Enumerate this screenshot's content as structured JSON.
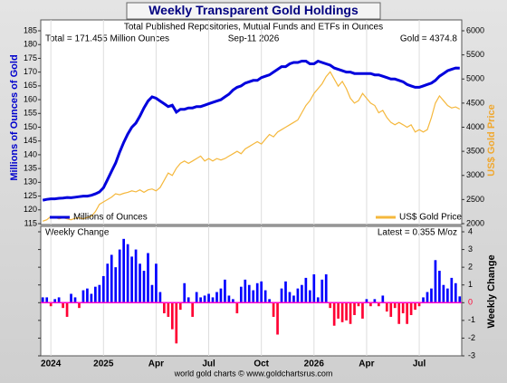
{
  "chart_data": [
    {
      "type": "line",
      "title": "Weekly Transparent Gold Holdings",
      "subtitle": "Total Published Repositories, Mutual Funds and ETFs in Ounces",
      "total_label": "Total = 171.455 Million Ounces",
      "date": "Sep-11 2026",
      "gold_label": "Gold = 4374.8",
      "ylabel": "Millions of Ounces of Gold",
      "y2label": "US$ Gold Price",
      "ylim": [
        115,
        185
      ],
      "yticks": [
        115,
        120,
        125,
        130,
        135,
        140,
        145,
        150,
        155,
        160,
        165,
        170,
        175,
        180,
        185
      ],
      "y2lim": [
        2000,
        6000
      ],
      "y2ticks": [
        2000,
        2500,
        3000,
        3500,
        4000,
        4500,
        5000,
        5500,
        6000
      ],
      "series": [
        {
          "name": "Millions of Ounces",
          "color": "#0000dd",
          "axis": "y",
          "values": [
            123.5,
            123.8,
            124,
            124,
            124.2,
            124.3,
            124.5,
            124.4,
            124.6,
            124.8,
            125,
            125,
            125.3,
            125.8,
            126.5,
            128,
            131,
            134,
            137,
            141,
            144.5,
            147.5,
            150,
            151.5,
            154,
            157,
            159.5,
            161,
            160.5,
            159.5,
            158.5,
            157.5,
            158,
            155.5,
            156.5,
            156.5,
            157,
            157,
            157.5,
            157.5,
            158,
            158.5,
            159,
            159.5,
            160,
            161,
            162,
            163.5,
            164.5,
            165,
            166,
            166.5,
            167,
            167,
            168,
            168.5,
            169,
            170,
            171,
            172,
            172,
            173,
            173.5,
            173.5,
            174,
            174,
            173,
            173,
            174,
            173.5,
            173,
            172.5,
            171.5,
            171,
            170.5,
            170,
            170,
            169.5,
            169.5,
            169.5,
            169.5,
            169.5,
            169,
            169,
            168.5,
            168,
            167.5,
            167.5,
            167,
            166.5,
            165.5,
            165,
            164.5,
            164.5,
            165,
            165.5,
            166,
            167,
            168.5,
            169.5,
            170.5,
            171,
            171.5,
            171.455
          ]
        },
        {
          "name": "US$ Gold Price",
          "color": "#f5b83d",
          "axis": "y2",
          "values": [
            2050,
            2080,
            2150,
            2130,
            2100,
            2120,
            2100,
            2080,
            2110,
            2120,
            2100,
            2130,
            2150,
            2250,
            2400,
            2450,
            2500,
            2550,
            2620,
            2600,
            2630,
            2650,
            2680,
            2660,
            2700,
            2650,
            2700,
            2720,
            2680,
            2750,
            2900,
            3050,
            3000,
            3150,
            3250,
            3300,
            3250,
            3300,
            3350,
            3400,
            3300,
            3350,
            3300,
            3350,
            3320,
            3350,
            3400,
            3450,
            3500,
            3450,
            3550,
            3600,
            3650,
            3700,
            3650,
            3750,
            3850,
            3800,
            3900,
            3950,
            4000,
            4050,
            4100,
            4150,
            4300,
            4450,
            4550,
            4700,
            4800,
            4900,
            5050,
            5150,
            5000,
            4850,
            4950,
            4800,
            4600,
            4500,
            4550,
            4700,
            4600,
            4500,
            4450,
            4300,
            4350,
            4200,
            4100,
            4050,
            4100,
            4050,
            4000,
            4050,
            3900,
            3950,
            3900,
            3950,
            4200,
            4500,
            4650,
            4550,
            4450,
            4400,
            4420,
            4374.8
          ]
        }
      ]
    },
    {
      "type": "bar",
      "title": "Weekly Change",
      "annotation": "Latest = 0.355 M/oz",
      "ylabel": "Weekly Change",
      "footer": "world gold charts © www.goldchartsrus.com",
      "color": "#0000ff",
      "negative_color": "#ff0033",
      "zero_line_color": "#ff00cc",
      "ylim": [
        -3,
        4
      ],
      "yticks": [
        -3,
        -2,
        -1,
        0,
        1,
        2,
        3,
        4
      ],
      "categories": [
        null,
        null,
        "2024",
        null,
        null,
        null,
        null,
        null,
        null,
        null,
        null,
        null,
        null,
        null,
        null,
        "2025",
        null,
        null,
        null,
        null,
        null,
        null,
        null,
        null,
        null,
        null,
        null,
        null,
        "Apr",
        null,
        null,
        null,
        null,
        null,
        null,
        null,
        null,
        null,
        null,
        null,
        null,
        "Jul",
        null,
        null,
        null,
        null,
        null,
        null,
        null,
        null,
        null,
        null,
        null,
        null,
        "Oct",
        null,
        null,
        null,
        null,
        null,
        null,
        null,
        null,
        null,
        null,
        null,
        null,
        "2026",
        null,
        null,
        null,
        null,
        null,
        null,
        null,
        null,
        null,
        null,
        null,
        null,
        "Apr",
        null,
        null,
        null,
        null,
        null,
        null,
        null,
        null,
        null,
        null,
        null,
        null,
        "Jul",
        null,
        null,
        null,
        null,
        null,
        null,
        null,
        null,
        null,
        null
      ],
      "values": [
        0.3,
        0.3,
        -0.2,
        0.2,
        0.3,
        -0.3,
        -0.8,
        0.5,
        0.3,
        -0.3,
        0.7,
        0.8,
        0.5,
        0.9,
        1,
        1.5,
        2.2,
        2.7,
        2,
        3,
        3.6,
        3.3,
        2.6,
        3,
        2.2,
        1.8,
        2.8,
        1,
        2.2,
        0.6,
        -0.6,
        -0.8,
        -1.5,
        -2.3,
        -0.4,
        1.1,
        0.3,
        -0.8,
        0.6,
        0.3,
        0.4,
        0.5,
        0.3,
        0.6,
        0.8,
        1.3,
        0.4,
        0.2,
        -0.6,
        0.9,
        1.3,
        1,
        0.7,
        1.1,
        1.2,
        0.7,
        0.2,
        -0.8,
        -1.8,
        0.8,
        1.2,
        0.6,
        0.4,
        0.8,
        1,
        1.4,
        0.7,
        1.6,
        0.3,
        1.3,
        1.6,
        -0.3,
        -1.3,
        -0.9,
        -1.1,
        -1,
        -1.2,
        -0.7,
        -0.2,
        -0.9,
        0.2,
        -0.2,
        0.2,
        -0.2,
        0.4,
        -0.5,
        -0.8,
        -0.3,
        -1.2,
        -0.6,
        -1.2,
        -0.7,
        -0.4,
        -0.2,
        0.3,
        0.6,
        0.8,
        2.4,
        1.8,
        1,
        0.8,
        1.4,
        1.1,
        0.355
      ]
    }
  ]
}
